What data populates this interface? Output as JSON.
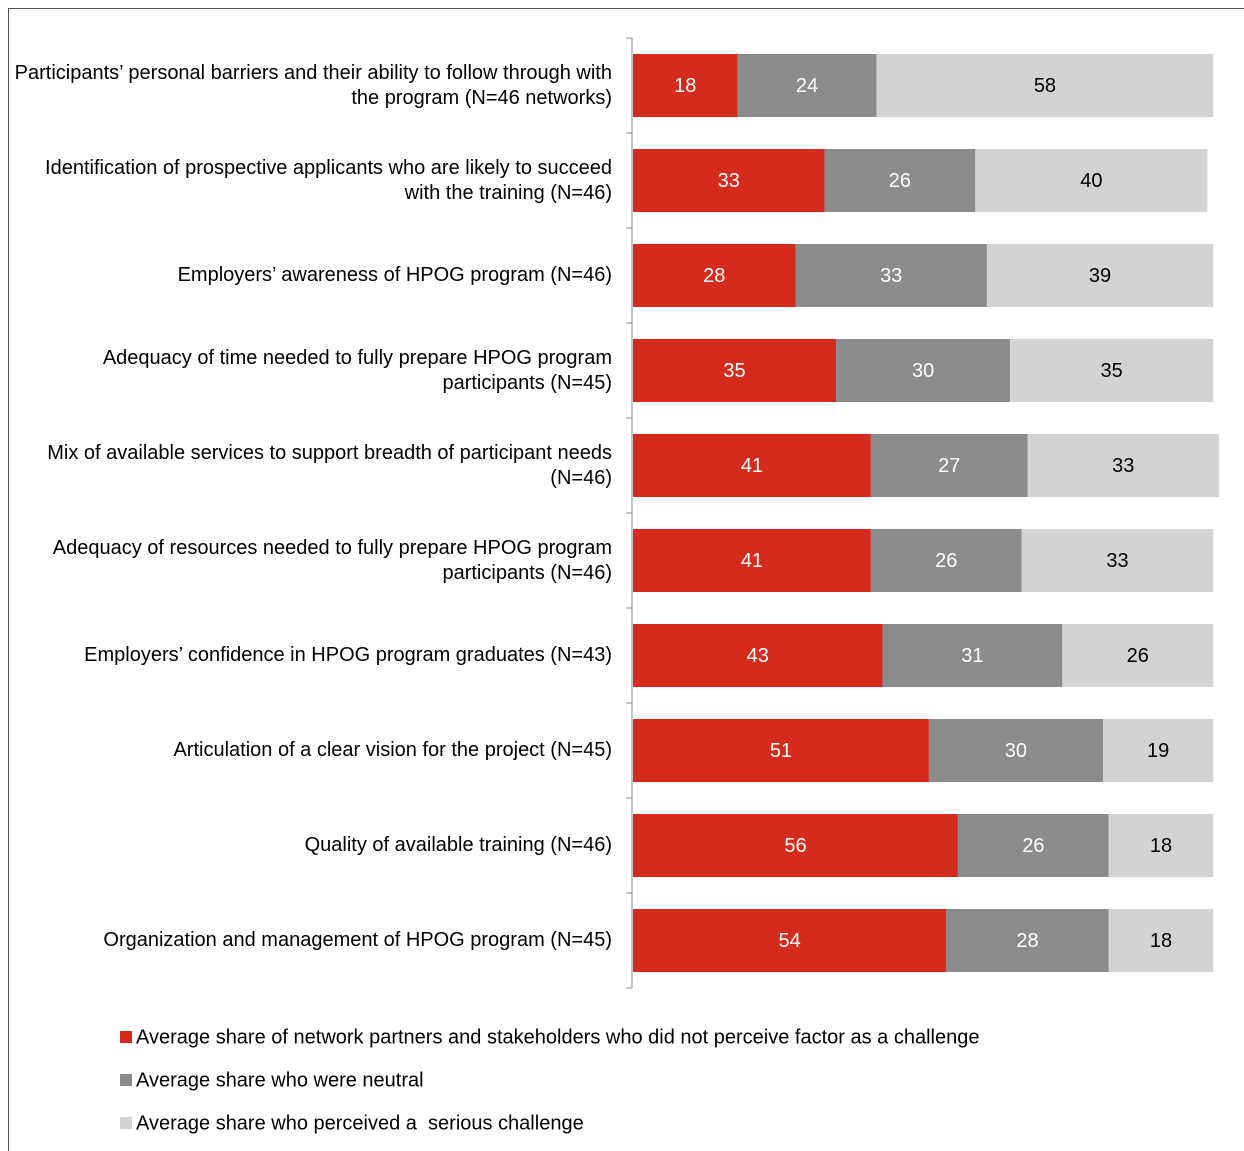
{
  "chart_data": {
    "type": "stacked-bar-horizontal",
    "categories": [
      "Participants’ personal barriers and their ability to follow through with the program (N=46 networks)",
      "Identification of prospective applicants who are likely to succeed with the training (N=46)",
      "Employers’ awareness of HPOG program (N=46)",
      "Adequacy of time needed to fully prepare HPOG program participants (N=45)",
      "Mix of available services to support breadth of participant needs (N=46)",
      "Adequacy of resources needed to fully prepare HPOG program participants (N=46)",
      "Employers’ confidence in HPOG program graduates (N=43)",
      "Articulation of a clear vision for the project (N=45)",
      "Quality of available training (N=46)",
      "Organization and management of HPOG program (N=45)"
    ],
    "series": [
      {
        "name": "Average share of network partners and stakeholders who did not perceive factor as a challenge",
        "color": "#d52b1e",
        "label_color": "#ffffff",
        "values": [
          18,
          33,
          28,
          35,
          41,
          41,
          43,
          51,
          56,
          54
        ]
      },
      {
        "name": "Average share who were neutral",
        "color": "#8a8c8c",
        "label_color": "#ffffff",
        "values": [
          24,
          26,
          33,
          30,
          27,
          26,
          31,
          30,
          26,
          28
        ]
      },
      {
        "name": "Average share who perceived a  serious challenge",
        "color": "#d1d3d4",
        "label_color": "#000000",
        "values": [
          58,
          40,
          39,
          35,
          33,
          33,
          26,
          19,
          18,
          18
        ]
      }
    ]
  }
}
